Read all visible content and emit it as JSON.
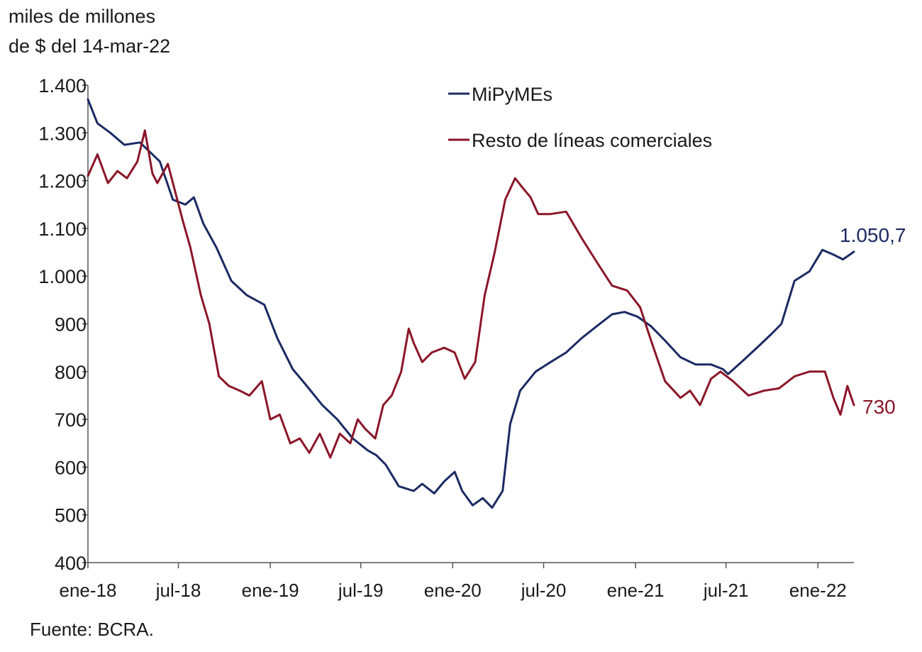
{
  "chart_data": {
    "type": "line",
    "ylabel_lines": [
      "miles de millones",
      "de $ del 14-mar-22"
    ],
    "source": "Fuente: BCRA.",
    "ylim": [
      400,
      1400
    ],
    "yticks": [
      400,
      500,
      600,
      700,
      800,
      900,
      1000,
      1100,
      1200,
      1300,
      1400
    ],
    "ytick_labels": [
      "400",
      "500",
      "600",
      "700",
      "800",
      "900",
      "1.000",
      "1.100",
      "1.200",
      "1.300",
      "1.400"
    ],
    "xlim": [
      "2018-01-01",
      "2022-03-14"
    ],
    "xticks": [
      "2018-01-01",
      "2018-07-01",
      "2019-01-01",
      "2019-07-01",
      "2020-01-01",
      "2020-07-01",
      "2021-01-01",
      "2021-07-01",
      "2022-01-01"
    ],
    "xtick_labels": [
      "ene-18",
      "jul-18",
      "ene-19",
      "jul-19",
      "ene-20",
      "jul-20",
      "ene-21",
      "jul-21",
      "ene-22"
    ],
    "grid": false,
    "legend_position": "top-center",
    "series": [
      {
        "name": "MiPyMEs",
        "color": "#1b2a63",
        "end_label": "1.050,7",
        "x": [
          "2018-01-01",
          "2018-01-20",
          "2018-02-15",
          "2018-03-15",
          "2018-04-15",
          "2018-05-10",
          "2018-05-25",
          "2018-06-20",
          "2018-07-15",
          "2018-08-01",
          "2018-08-20",
          "2018-09-15",
          "2018-10-15",
          "2018-11-15",
          "2018-12-20",
          "2019-01-15",
          "2019-02-15",
          "2019-03-15",
          "2019-04-15",
          "2019-05-15",
          "2019-06-15",
          "2019-07-15",
          "2019-08-01",
          "2019-08-20",
          "2019-09-15",
          "2019-10-15",
          "2019-11-01",
          "2019-11-25",
          "2019-12-15",
          "2020-01-05",
          "2020-01-20",
          "2020-02-10",
          "2020-03-01",
          "2020-03-20",
          "2020-04-10",
          "2020-04-25",
          "2020-05-15",
          "2020-06-15",
          "2020-07-15",
          "2020-08-15",
          "2020-09-15",
          "2020-10-15",
          "2020-11-15",
          "2020-12-10",
          "2021-01-05",
          "2021-02-01",
          "2021-03-01",
          "2021-04-01",
          "2021-05-01",
          "2021-06-01",
          "2021-06-25",
          "2021-07-05",
          "2021-08-01",
          "2021-09-01",
          "2021-10-01",
          "2021-10-20",
          "2021-11-15",
          "2021-12-15",
          "2022-01-10",
          "2022-02-01",
          "2022-02-20",
          "2022-03-14"
        ],
        "values": [
          1370,
          1320,
          1300,
          1275,
          1280,
          1255,
          1240,
          1160,
          1150,
          1165,
          1110,
          1060,
          990,
          960,
          940,
          870,
          805,
          770,
          730,
          700,
          660,
          635,
          625,
          605,
          560,
          550,
          565,
          545,
          570,
          590,
          550,
          520,
          535,
          515,
          550,
          690,
          760,
          800,
          820,
          840,
          870,
          895,
          920,
          925,
          915,
          895,
          865,
          830,
          815,
          815,
          805,
          795,
          820,
          850,
          880,
          900,
          990,
          1010,
          1055,
          1045,
          1035,
          1051
        ]
      },
      {
        "name": "Resto de líneas comerciales",
        "color": "#8b1628",
        "end_label": "730",
        "x": [
          "2018-01-01",
          "2018-01-20",
          "2018-02-10",
          "2018-03-01",
          "2018-03-20",
          "2018-04-10",
          "2018-04-25",
          "2018-05-10",
          "2018-05-20",
          "2018-06-10",
          "2018-06-25",
          "2018-07-10",
          "2018-07-25",
          "2018-08-15",
          "2018-09-01",
          "2018-09-20",
          "2018-10-10",
          "2018-11-01",
          "2018-11-20",
          "2018-12-15",
          "2019-01-01",
          "2019-01-20",
          "2019-02-10",
          "2019-03-01",
          "2019-03-20",
          "2019-04-10",
          "2019-05-01",
          "2019-05-20",
          "2019-06-10",
          "2019-06-25",
          "2019-07-10",
          "2019-07-30",
          "2019-08-15",
          "2019-09-01",
          "2019-09-20",
          "2019-10-05",
          "2019-10-15",
          "2019-11-01",
          "2019-11-20",
          "2019-12-15",
          "2020-01-05",
          "2020-01-25",
          "2020-02-15",
          "2020-03-05",
          "2020-03-25",
          "2020-04-15",
          "2020-05-05",
          "2020-05-20",
          "2020-06-05",
          "2020-06-20",
          "2020-07-15",
          "2020-08-15",
          "2020-09-15",
          "2020-10-15",
          "2020-11-15",
          "2020-12-15",
          "2021-01-10",
          "2021-02-01",
          "2021-03-01",
          "2021-04-01",
          "2021-04-20",
          "2021-05-10",
          "2021-06-01",
          "2021-06-20",
          "2021-07-15",
          "2021-08-15",
          "2021-09-15",
          "2021-10-15",
          "2021-11-15",
          "2021-12-15",
          "2022-01-15",
          "2022-02-01",
          "2022-02-15",
          "2022-03-01",
          "2022-03-14"
        ],
        "values": [
          1210,
          1255,
          1195,
          1220,
          1205,
          1240,
          1305,
          1215,
          1195,
          1235,
          1175,
          1115,
          1060,
          960,
          900,
          790,
          770,
          760,
          750,
          780,
          700,
          710,
          650,
          660,
          630,
          670,
          620,
          670,
          650,
          700,
          680,
          660,
          730,
          750,
          800,
          890,
          860,
          820,
          840,
          850,
          840,
          785,
          820,
          960,
          1050,
          1160,
          1205,
          1185,
          1165,
          1130,
          1130,
          1135,
          1080,
          1030,
          980,
          970,
          935,
          865,
          780,
          745,
          760,
          730,
          785,
          800,
          780,
          750,
          760,
          765,
          790,
          800,
          800,
          745,
          710,
          770,
          730
        ]
      }
    ]
  }
}
